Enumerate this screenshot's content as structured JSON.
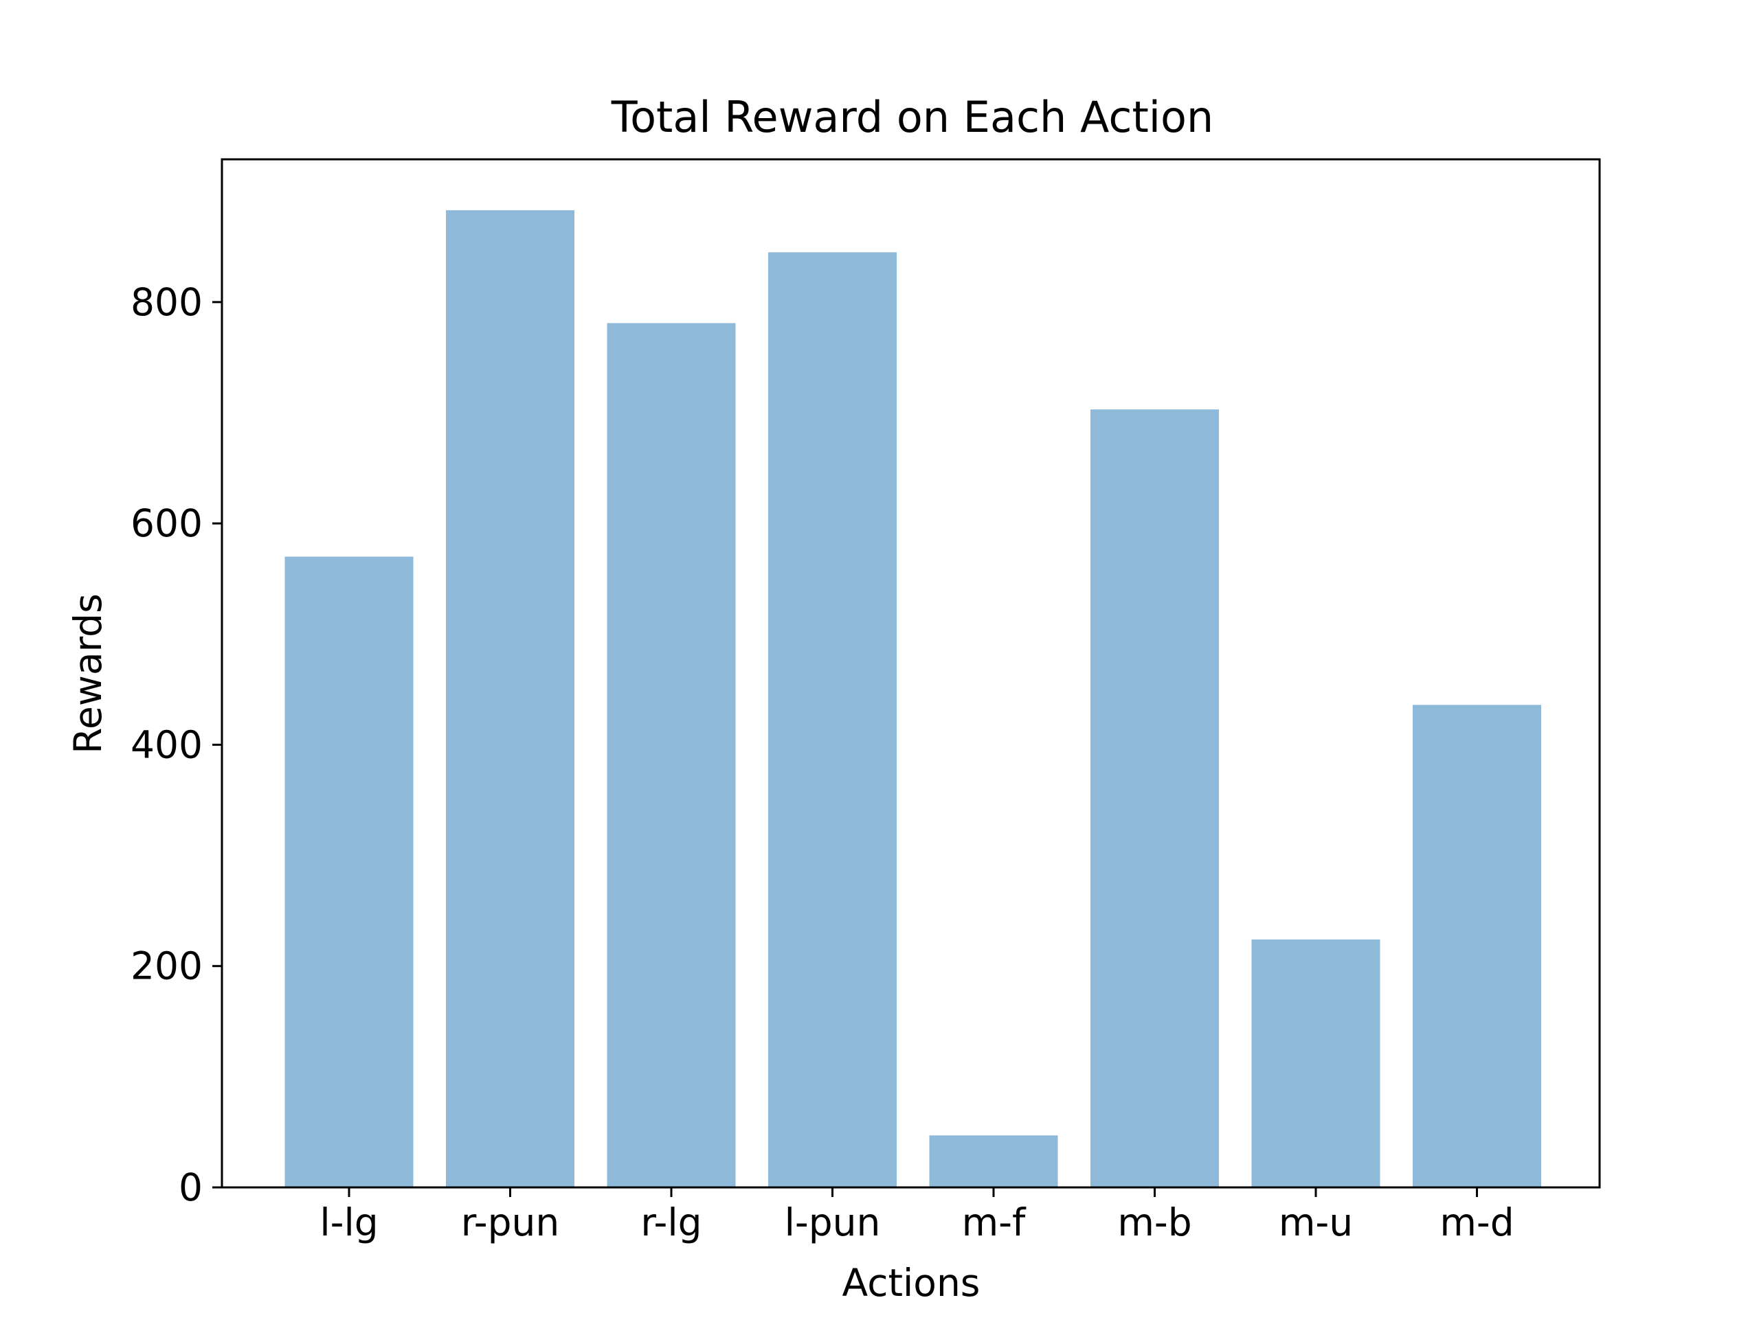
{
  "chart_data": {
    "type": "bar",
    "title": "Total Reward on Each Action",
    "xlabel": "Actions",
    "ylabel": "Rewards",
    "categories": [
      "l-lg",
      "r-pun",
      "r-lg",
      "l-pun",
      "m-f",
      "m-b",
      "m-u",
      "m-d"
    ],
    "values": [
      570,
      883,
      781,
      845,
      47,
      703,
      224,
      436
    ],
    "ylim": [
      0,
      929
    ],
    "yticks": [
      0,
      200,
      400,
      600,
      800
    ],
    "ytick_labels": [
      "0",
      "200",
      "400",
      "600",
      "800"
    ],
    "grid": false,
    "legend": "none",
    "bar_color": "#8fb9d9"
  }
}
